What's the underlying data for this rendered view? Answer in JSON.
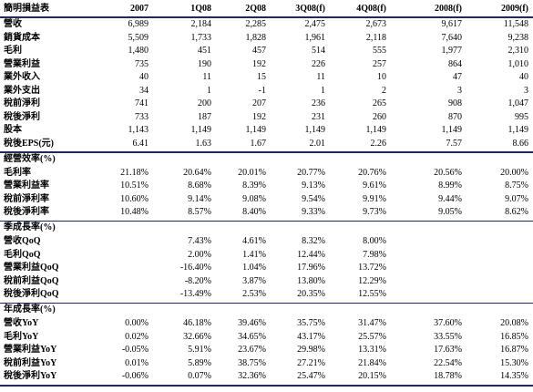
{
  "header": {
    "title": "簡明損益表",
    "columns": [
      "2007",
      "1Q08",
      "2Q08",
      "3Q08(f)",
      "4Q08(f)",
      "2008(f)",
      "2009(f)"
    ]
  },
  "sections": [
    {
      "rows": [
        {
          "label": "營收",
          "values": [
            "6,989",
            "2,184",
            "2,285",
            "2,475",
            "2,673",
            "9,617",
            "11,548"
          ]
        },
        {
          "label": "銷貨成本",
          "values": [
            "5,509",
            "1,733",
            "1,828",
            "1,961",
            "2,118",
            "7,640",
            "9,238"
          ]
        },
        {
          "label": "毛利",
          "values": [
            "1,480",
            "451",
            "457",
            "514",
            "555",
            "1,977",
            "2,310"
          ]
        },
        {
          "label": "營業利益",
          "values": [
            "735",
            "190",
            "192",
            "226",
            "257",
            "864",
            "1,010"
          ]
        },
        {
          "label": "業外收入",
          "values": [
            "40",
            "11",
            "15",
            "11",
            "10",
            "47",
            "40"
          ]
        },
        {
          "label": "業外支出",
          "values": [
            "34",
            "1",
            "-1",
            "1",
            "2",
            "3",
            "3"
          ]
        },
        {
          "label": "稅前淨利",
          "values": [
            "741",
            "200",
            "207",
            "236",
            "265",
            "908",
            "1,047"
          ]
        },
        {
          "label": "稅後淨利",
          "values": [
            "733",
            "187",
            "192",
            "231",
            "260",
            "870",
            "995"
          ]
        },
        {
          "label": "股本",
          "values": [
            "1,143",
            "1,149",
            "1,149",
            "1,149",
            "1,149",
            "1,149",
            "1,149"
          ]
        },
        {
          "label": "稅後EPS(元)",
          "values": [
            "6.41",
            "1.63",
            "1.67",
            "2.01",
            "2.26",
            "7.57",
            "8.66"
          ]
        }
      ]
    },
    {
      "title": "經營效率(%)",
      "rows": [
        {
          "label": "毛利率",
          "values": [
            "21.18%",
            "20.64%",
            "20.01%",
            "20.77%",
            "20.76%",
            "20.56%",
            "20.00%"
          ]
        },
        {
          "label": "營業利益率",
          "values": [
            "10.51%",
            "8.68%",
            "8.39%",
            "9.13%",
            "9.61%",
            "8.99%",
            "8.75%"
          ]
        },
        {
          "label": "稅前淨利率",
          "values": [
            "10.60%",
            "9.14%",
            "9.08%",
            "9.54%",
            "9.91%",
            "9.44%",
            "9.07%"
          ]
        },
        {
          "label": "稅後淨利率",
          "values": [
            "10.48%",
            "8.57%",
            "8.40%",
            "9.33%",
            "9.73%",
            "9.05%",
            "8.62%"
          ]
        }
      ]
    },
    {
      "title": "季成長率(%)",
      "rows": [
        {
          "label": "營收QoQ",
          "values": [
            null,
            "7.43%",
            "4.61%",
            "8.32%",
            "8.00%",
            null,
            null
          ]
        },
        {
          "label": "毛利QoQ",
          "values": [
            null,
            "2.00%",
            "1.41%",
            "12.44%",
            "7.98%",
            null,
            null
          ]
        },
        {
          "label": "營業利益QoQ",
          "values": [
            null,
            "-16.40%",
            "1.04%",
            "17.96%",
            "13.72%",
            null,
            null
          ]
        },
        {
          "label": "稅前利益QoQ",
          "values": [
            null,
            "-8.20%",
            "3.87%",
            "13.80%",
            "12.29%",
            null,
            null
          ]
        },
        {
          "label": "稅後淨利QoQ",
          "values": [
            null,
            "-13.49%",
            "2.53%",
            "20.35%",
            "12.55%",
            null,
            null
          ]
        }
      ]
    },
    {
      "title": "年成長率(%)",
      "rows": [
        {
          "label": "營收YoY",
          "values": [
            "0.00%",
            "46.18%",
            "39.46%",
            "35.75%",
            "31.47%",
            "37.60%",
            "20.08%"
          ]
        },
        {
          "label": "毛利YoY",
          "values": [
            "0.02%",
            "32.66%",
            "34.65%",
            "43.17%",
            "25.57%",
            "33.55%",
            "16.85%"
          ]
        },
        {
          "label": "營業利益YoY",
          "values": [
            "-0.05%",
            "5.91%",
            "23.67%",
            "29.98%",
            "13.31%",
            "17.63%",
            "16.87%"
          ]
        },
        {
          "label": "稅前利益YoY",
          "values": [
            "0.01%",
            "5.89%",
            "38.75%",
            "27.21%",
            "21.84%",
            "22.54%",
            "15.30%"
          ]
        },
        {
          "label": "稅後淨利YoY",
          "values": [
            "-0.06%",
            "0.07%",
            "32.36%",
            "25.47%",
            "20.15%",
            "18.78%",
            "14.35%"
          ]
        }
      ]
    }
  ]
}
